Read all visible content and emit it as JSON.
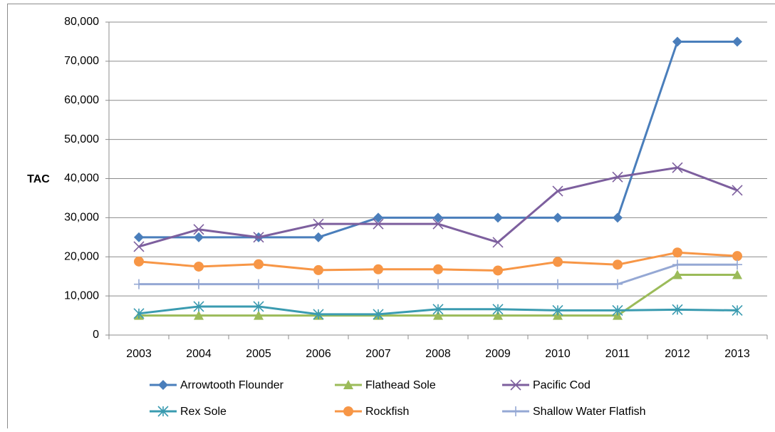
{
  "chart_data": {
    "type": "line",
    "y_label": "TAC",
    "categories": [
      "2003",
      "2004",
      "2005",
      "2006",
      "2007",
      "2008",
      "2009",
      "2010",
      "2011",
      "2012",
      "2013"
    ],
    "ylim": [
      0,
      80000
    ],
    "yticks": [
      0,
      {
        "value": 10000,
        "label": "10,000"
      },
      {
        "value": 20000,
        "label": "20,000"
      },
      {
        "value": 30000,
        "label": "30,000"
      },
      {
        "value": 40000,
        "label": "40,000"
      },
      {
        "value": 50000,
        "label": "50,000"
      },
      {
        "value": 60000,
        "label": "60,000"
      },
      {
        "value": 70000,
        "label": "70,000"
      },
      {
        "value": 80000,
        "label": "80,000"
      }
    ],
    "grid": true,
    "legend": "bottom",
    "series": [
      {
        "name": "Arrowtooth Flounder",
        "color": "#4a7ebb",
        "marker": "diamond",
        "values": [
          25000,
          25000,
          25000,
          25000,
          30000,
          30000,
          30000,
          30000,
          30000,
          75000,
          75000
        ]
      },
      {
        "name": "Flathead Sole",
        "color": "#9bbb59",
        "marker": "triangle",
        "values": [
          5000,
          5000,
          5000,
          5000,
          5000,
          5000,
          5000,
          5000,
          5000,
          15400,
          15400
        ]
      },
      {
        "name": "Pacific Cod",
        "color": "#7d5f9e",
        "marker": "x",
        "values": [
          22600,
          27000,
          25000,
          28400,
          28400,
          28400,
          23700,
          36800,
          40400,
          42800,
          37000
        ]
      },
      {
        "name": "Rex Sole",
        "color": "#3a9bb0",
        "marker": "asterisk",
        "values": [
          5500,
          7300,
          7300,
          5300,
          5300,
          6600,
          6600,
          6300,
          6300,
          6500,
          6300
        ]
      },
      {
        "name": "Rockfish",
        "color": "#f79646",
        "marker": "circle",
        "values": [
          18800,
          17500,
          18100,
          16600,
          16800,
          16800,
          16500,
          18700,
          18000,
          21100,
          20200
        ]
      },
      {
        "name": "Shallow Water Flatfish",
        "color": "#95a8d4",
        "marker": "plus",
        "values": [
          13000,
          13000,
          13000,
          13000,
          13000,
          13000,
          13000,
          13000,
          13000,
          18000,
          18000
        ]
      }
    ]
  }
}
